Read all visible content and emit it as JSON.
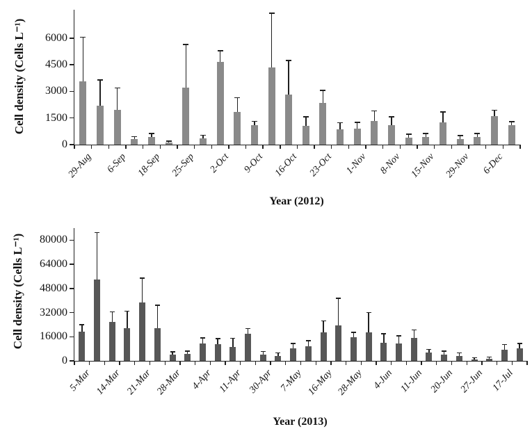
{
  "figure": {
    "background": "#FFFFFF"
  },
  "chart_data": [
    {
      "type": "bar",
      "title": "",
      "xlabel": "Year (2012)",
      "ylabel": "Cell density (Cells L⁻¹)",
      "bar_color": "#8A8A8A",
      "error_color": "#1F1F1F",
      "grid": false,
      "legend": false,
      "ylim": [
        0,
        7600
      ],
      "yticks": [
        0,
        1500,
        3000,
        4500,
        6000
      ],
      "categories": [
        "29-Aug",
        "",
        "6-Sep",
        "",
        "18-Sep",
        "",
        "25-Sep",
        "",
        "2-Oct",
        "",
        "9-Oct",
        "",
        "16-Oct",
        "",
        "23-Oct",
        "",
        "1-Nov",
        "",
        "8-Nov",
        "",
        "15-Nov",
        "",
        "29-Nov",
        "",
        "6-Dec",
        ""
      ],
      "values": [
        3550,
        2180,
        1950,
        300,
        420,
        100,
        3200,
        360,
        4680,
        1850,
        1090,
        4350,
        2820,
        1060,
        2360,
        880,
        900,
        1350,
        1080,
        400,
        440,
        1250,
        320,
        440,
        1590,
        1110
      ],
      "error_top": [
        6050,
        3650,
        3200,
        450,
        620,
        200,
        5650,
        530,
        5300,
        2650,
        1320,
        7400,
        4750,
        1580,
        3070,
        1240,
        1250,
        1900,
        1570,
        600,
        640,
        1840,
        510,
        640,
        1940,
        1290
      ]
    },
    {
      "type": "bar",
      "title": "",
      "xlabel": "Year (2013)",
      "ylabel": "Cell density (Cells L⁻¹)",
      "bar_color": "#575757",
      "error_color": "#1F1F1F",
      "grid": false,
      "legend": false,
      "ylim": [
        0,
        88000
      ],
      "yticks": [
        0,
        16000,
        32000,
        48000,
        64000,
        80000
      ],
      "categories": [
        "5-Mar",
        "",
        "14-Mar",
        "",
        "21-Mar",
        "",
        "28-Mar",
        "",
        "4-Apr",
        "",
        "11-Apr",
        "",
        "30-Apr",
        "",
        "7-May",
        "",
        "16-May",
        "",
        "28-May",
        "",
        "4-Jun",
        "",
        "11-Jun",
        "",
        "20-Jun",
        "",
        "27-Jun",
        "",
        "17-Jul",
        ""
      ],
      "values": [
        19500,
        54000,
        26000,
        21500,
        38500,
        21500,
        4200,
        4500,
        11500,
        11000,
        9300,
        18000,
        4300,
        3400,
        8200,
        9500,
        19000,
        23500,
        15800,
        18800,
        11800,
        11500,
        15300,
        5500,
        4300,
        3300,
        1000,
        1500,
        7400,
        8100
      ],
      "error_top": [
        24000,
        85000,
        32500,
        33000,
        55000,
        37000,
        6000,
        6500,
        15200,
        14800,
        15000,
        21500,
        6300,
        5300,
        11700,
        13500,
        26500,
        41500,
        18800,
        32000,
        18000,
        16500,
        20500,
        7600,
        6400,
        5300,
        2100,
        2600,
        10800,
        11600
      ]
    }
  ]
}
